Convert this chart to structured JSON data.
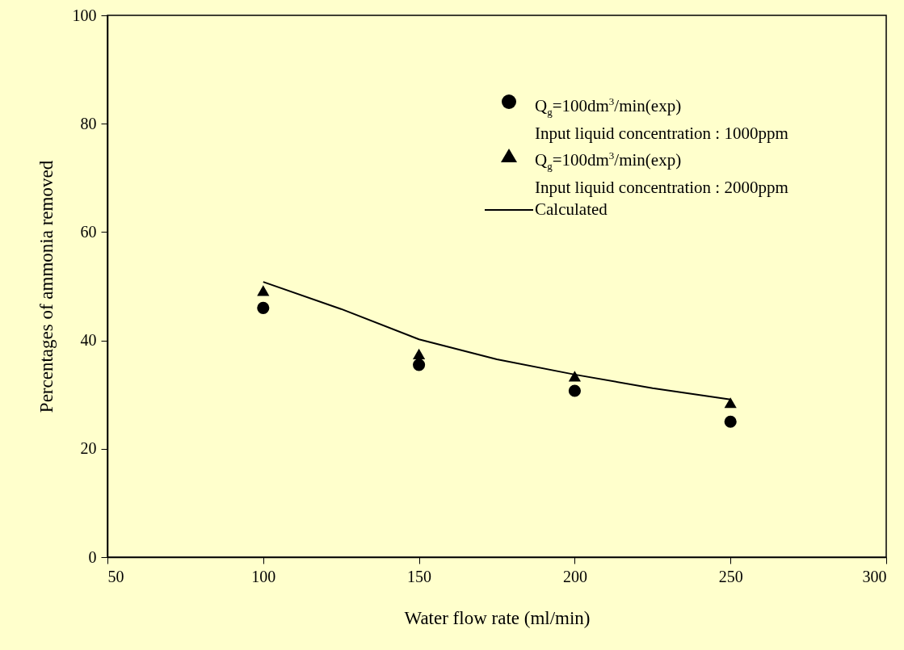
{
  "chart_data": {
    "type": "scatter",
    "xlabel": "Water flow rate (ml/min)",
    "ylabel": "Percentages of ammonia removed",
    "x": [
      100,
      150,
      200,
      250
    ],
    "series": [
      {
        "name": "Q$_{g}$=100dm$^{3}$/min(exp)\nInput liquid concentration : 1000ppm",
        "color": "#000000",
        "marker": "circle",
        "values": [
          46.0,
          35.5,
          30.7,
          25.0
        ]
      },
      {
        "name": "Q$_{g}$=100dm$^{3}$/min(exp)\nInput liquid concentration : 2000ppm",
        "color": "#000000",
        "marker": "triangle",
        "values": [
          49.2,
          37.5,
          33.4,
          28.5
        ]
      },
      {
        "name": "Calculated",
        "type": "line",
        "color": "#000000",
        "marker": "none",
        "line_style": "solid",
        "x": [
          100,
          125,
          150,
          175,
          200,
          225,
          250
        ],
        "values": [
          50.8,
          45.8,
          40.2,
          36.5,
          33.7,
          31.2,
          29.1
        ]
      }
    ],
    "xlim": [
      50,
      300
    ],
    "xticks": [
      50,
      100,
      150,
      200,
      250,
      300
    ],
    "ylim": [
      0,
      100
    ],
    "yticks": [
      0,
      20,
      40,
      60,
      80,
      100
    ],
    "grid": false,
    "legend": "top right"
  }
}
